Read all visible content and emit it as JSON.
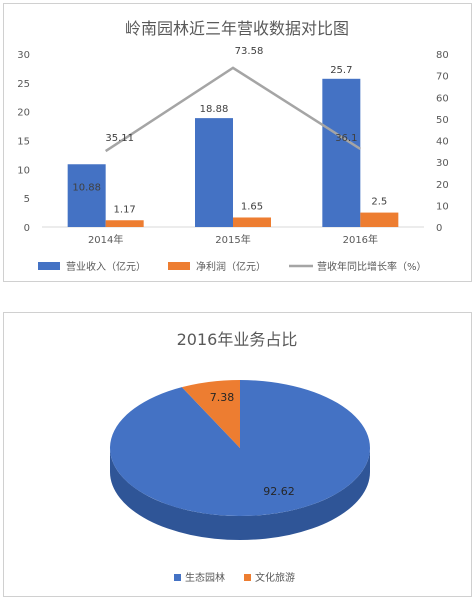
{
  "chart_data": [
    {
      "type": "bar",
      "title": "岭南园林近三年营收数据对比图",
      "categories": [
        "2014年",
        "2015年",
        "2016年"
      ],
      "series": [
        {
          "name": "营业收入（亿元）",
          "type": "bar",
          "axis": "left",
          "color": "#4472C4",
          "values": [
            10.88,
            18.88,
            25.7
          ],
          "labels": [
            "10.88",
            "18.88",
            "25.7"
          ]
        },
        {
          "name": "净利润（亿元）",
          "type": "bar",
          "axis": "left",
          "color": "#ED7D31",
          "values": [
            1.17,
            1.65,
            2.5
          ],
          "labels": [
            "1.17",
            "1.65",
            "2.5"
          ]
        },
        {
          "name": "营收年同比增长率（%）",
          "type": "line",
          "axis": "right",
          "color": "#A5A5A5",
          "values": [
            35.11,
            73.58,
            36.1
          ],
          "labels": [
            "35.11",
            "73.58",
            "36.1"
          ]
        }
      ],
      "y_left": {
        "min": 0,
        "max": 30,
        "ticks": [
          "0",
          "5",
          "10",
          "15",
          "20",
          "25",
          "30"
        ]
      },
      "y_right": {
        "min": 0,
        "max": 80,
        "ticks": [
          "0",
          "10",
          "20",
          "30",
          "40",
          "50",
          "60",
          "70",
          "80"
        ]
      },
      "grid": false,
      "legend": "bottom"
    },
    {
      "type": "pie",
      "title": "2016年业务占比",
      "slices": [
        {
          "name": "生态园林",
          "value": 92.62,
          "label": "92.62",
          "color": "#4472C4",
          "side_color": "#2F5597"
        },
        {
          "name": "文化旅游",
          "value": 7.38,
          "label": "7.38",
          "color": "#ED7D31",
          "side_color": "#B45A1C"
        }
      ],
      "legend": "bottom"
    }
  ]
}
